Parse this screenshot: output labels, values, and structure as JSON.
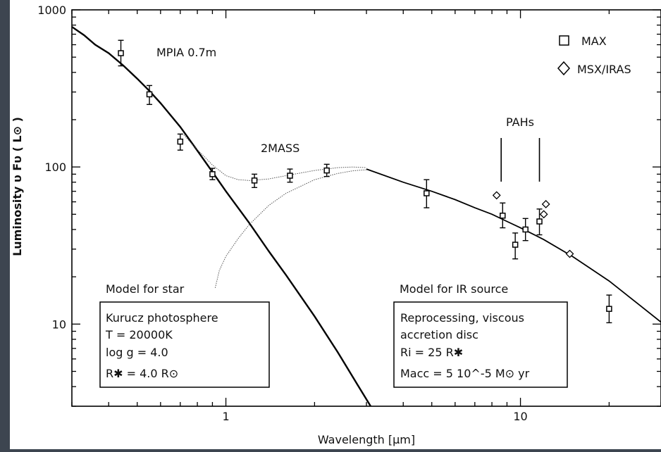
{
  "chart_data": {
    "type": "scatter",
    "xlabel": "Wavelength  [μm]",
    "ylabel": "Luminosity υ Fυ ( L⊙ )",
    "xscale": "log",
    "yscale": "log",
    "xlim": [
      0.3,
      30
    ],
    "ylim": [
      3,
      1000
    ],
    "x_ticks": [
      {
        "value": 1,
        "label": "1"
      },
      {
        "value": 10,
        "label": "10"
      }
    ],
    "y_ticks": [
      {
        "value": 10,
        "label": "10"
      },
      {
        "value": 100,
        "label": "100"
      },
      {
        "value": 1000,
        "label": "1000"
      }
    ],
    "grid": false,
    "legend_position": "top-right",
    "legend": [
      {
        "name": "MAX",
        "marker": "square"
      },
      {
        "name": "MSX/IRAS",
        "marker": "diamond"
      }
    ],
    "series": [
      {
        "name": "MAX",
        "marker": "square",
        "points": [
          {
            "x": 0.44,
            "y": 530,
            "yerr": [
              440,
              640
            ]
          },
          {
            "x": 0.55,
            "y": 290,
            "yerr": [
              250,
              330
            ]
          },
          {
            "x": 0.7,
            "y": 145,
            "yerr": [
              128,
              162
            ]
          },
          {
            "x": 0.9,
            "y": 90,
            "yerr": [
              83,
              98
            ]
          },
          {
            "x": 1.25,
            "y": 82,
            "yerr": [
              74,
              90
            ]
          },
          {
            "x": 1.65,
            "y": 88,
            "yerr": [
              80,
              97
            ]
          },
          {
            "x": 2.2,
            "y": 95,
            "yerr": [
              87,
              104
            ]
          },
          {
            "x": 4.8,
            "y": 68,
            "yerr": [
              55,
              83
            ]
          },
          {
            "x": 8.7,
            "y": 49,
            "yerr": [
              41,
              59
            ]
          },
          {
            "x": 9.6,
            "y": 32,
            "yerr": [
              26,
              38
            ]
          },
          {
            "x": 10.4,
            "y": 40,
            "yerr": [
              34,
              47
            ]
          },
          {
            "x": 11.6,
            "y": 45,
            "yerr": [
              37,
              54
            ]
          },
          {
            "x": 20.0,
            "y": 12.5,
            "yerr": [
              10.2,
              15.3
            ]
          }
        ]
      },
      {
        "name": "MSX/IRAS",
        "marker": "diamond",
        "points": [
          {
            "x": 8.3,
            "y": 66
          },
          {
            "x": 12.0,
            "y": 50
          },
          {
            "x": 12.2,
            "y": 58
          },
          {
            "x": 14.7,
            "y": 28
          }
        ]
      }
    ],
    "curves": [
      {
        "id": "stellar-photosphere",
        "style": "thick-solid",
        "points": [
          [
            0.3,
            780
          ],
          [
            0.33,
            690
          ],
          [
            0.36,
            600
          ],
          [
            0.4,
            530
          ],
          [
            0.45,
            440
          ],
          [
            0.5,
            365
          ],
          [
            0.55,
            305
          ],
          [
            0.6,
            255
          ],
          [
            0.7,
            180
          ],
          [
            0.8,
            127
          ],
          [
            0.9,
            93
          ],
          [
            1.0,
            70
          ],
          [
            1.2,
            44
          ],
          [
            1.4,
            29
          ],
          [
            1.6,
            20.5
          ],
          [
            2.0,
            11.2
          ],
          [
            2.4,
            6.6
          ],
          [
            2.8,
            4.1
          ],
          [
            3.1,
            3.0
          ]
        ]
      },
      {
        "id": "ir-disc-model",
        "style": "solid",
        "points": [
          [
            3.0,
            97
          ],
          [
            4.0,
            80
          ],
          [
            5.0,
            70
          ],
          [
            6.0,
            62
          ],
          [
            7.0,
            55
          ],
          [
            8.0,
            50
          ],
          [
            9.0,
            45
          ],
          [
            10.0,
            41
          ],
          [
            12.0,
            34.5
          ],
          [
            15.0,
            27
          ],
          [
            20.0,
            18.8
          ],
          [
            25.0,
            13.5
          ],
          [
            30.0,
            10.3
          ]
        ]
      },
      {
        "id": "ir-disc-rise",
        "style": "thin-dotted",
        "points": [
          [
            0.92,
            17
          ],
          [
            0.95,
            22
          ],
          [
            1.0,
            27
          ],
          [
            1.1,
            35
          ],
          [
            1.2,
            43
          ],
          [
            1.4,
            57
          ],
          [
            1.6,
            68
          ],
          [
            2.0,
            83
          ],
          [
            2.4,
            91
          ],
          [
            2.7,
            94.5
          ],
          [
            3.0,
            96
          ]
        ]
      },
      {
        "id": "total-model",
        "style": "thin-dotted",
        "points": [
          [
            0.72,
            160
          ],
          [
            0.78,
            135
          ],
          [
            0.85,
            115
          ],
          [
            0.9,
            103
          ],
          [
            1.0,
            88
          ],
          [
            1.1,
            83
          ],
          [
            1.2,
            82
          ],
          [
            1.4,
            84
          ],
          [
            1.6,
            88
          ],
          [
            2.0,
            95
          ],
          [
            2.4,
            99
          ],
          [
            2.7,
            100
          ],
          [
            3.0,
            99
          ]
        ]
      }
    ],
    "annotations": {
      "mpia": "MPIA 0.7m",
      "twomass": "2MASS",
      "pahs": "PAHs",
      "pah_lines_x": [
        8.6,
        11.6
      ],
      "star_title": "Model for star",
      "star_box": [
        "Kurucz photosphere",
        "T = 20000K",
        "log g = 4.0",
        "R✱ = 4.0 R⊙"
      ],
      "ir_title": "Model for IR source",
      "ir_box": [
        "Reprocessing, viscous",
        "accretion disc",
        "Ri = 25 R✱",
        "Macc = 5 10^-5 M⊙ yr"
      ]
    }
  }
}
